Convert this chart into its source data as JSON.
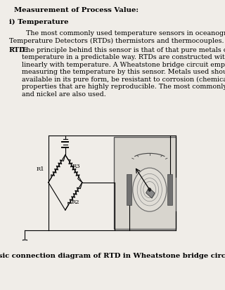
{
  "bg_color": "#f0ede8",
  "title_text": "  Measurement of Process Value:",
  "title_fontsize": 7.2,
  "section_header": "i) Temperature",
  "section_header_fontsize": 7.2,
  "para1": "        The most commonly used temperature sensors in oceanography are the Resistance\nTemperature Detectors (RTDs) thermistors and thermocouples.",
  "para1_fontsize": 6.8,
  "para2_label": "RTD:",
  "para2_text": "The principle behind this sensor is that of that pure metals change their resistivity with\ntemperature in a predictable way. RTDs are constructed with metals whose resistivity increases\nlinearly with temperature. A Wheatstone bridge circuit employing electrical circuit is used in\nmeasuring the temperature by this sensor. Metals used should a have high boiling point, be easily\navailable in its pure form, be resistant to corrosion (chemical stability) and have electrical\nproperties that are highly reproducible. The most commonly used metal is platinum but copper\nand nickel are also used.",
  "para2_fontsize": 6.8,
  "caption": "Basic connection diagram of RTD in Wheatstone bridge circuit",
  "caption_fontsize": 7.2
}
